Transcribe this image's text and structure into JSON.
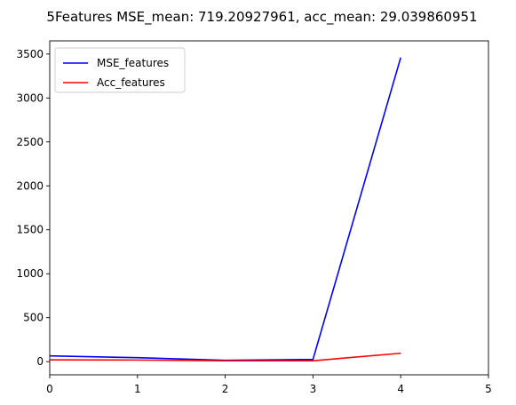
{
  "chart_data": {
    "type": "line",
    "title": "5Features MSE_mean: 719.20927961, acc_mean: 29.039860951",
    "xlim": [
      0,
      5
    ],
    "ylim": [
      -150,
      3650
    ],
    "xticks": [
      0,
      1,
      2,
      3,
      4,
      5
    ],
    "yticks": [
      0,
      500,
      1000,
      1500,
      2000,
      2500,
      3000,
      3500
    ],
    "grid": false,
    "legend_position": "top-left",
    "series": [
      {
        "name": "MSE_features",
        "color": "#0000ff",
        "x": [
          0,
          1,
          2,
          3,
          4
        ],
        "y": [
          65,
          45,
          15,
          25,
          3460
        ]
      },
      {
        "name": "Acc_features",
        "color": "#ff0000",
        "x": [
          0,
          1,
          2,
          3,
          4
        ],
        "y": [
          20,
          18,
          10,
          10,
          95
        ]
      }
    ]
  }
}
